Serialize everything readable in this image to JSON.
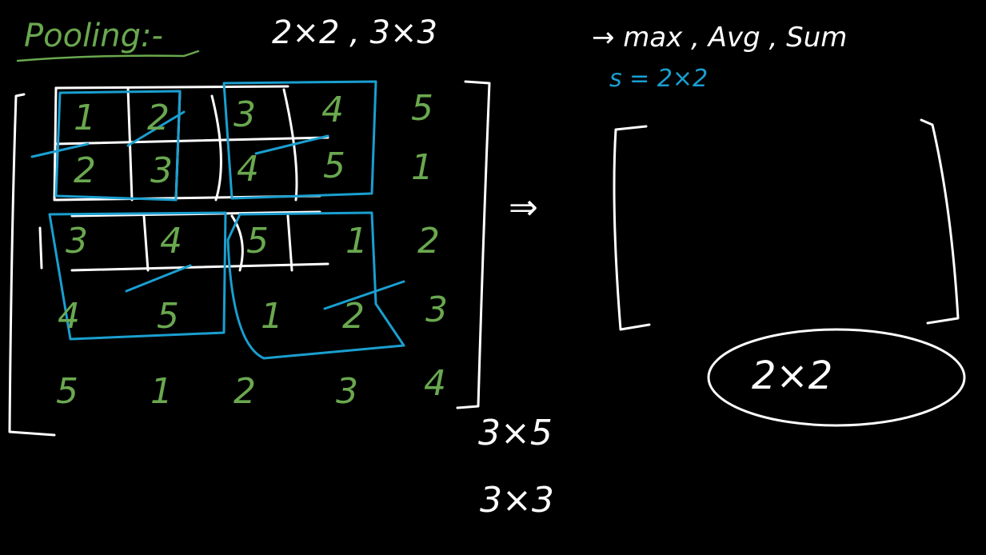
{
  "colors": {
    "background": "#000000",
    "ink_white": "#ffffff",
    "ink_green": "#6aa84f",
    "ink_blue": "#1a9fd0"
  },
  "title": "Pooling:-",
  "kernel_sizes": "2×2 , 3×3",
  "pool_types": "→ max , Avg , Sum",
  "stride_note": "s = 2×2",
  "input_matrix": [
    [
      "1",
      "2",
      "3",
      "4",
      "5"
    ],
    [
      "2",
      "3",
      "4",
      "5",
      "1"
    ],
    [
      "3",
      "4",
      "5",
      "1",
      "2"
    ],
    [
      "4",
      "5",
      "1",
      "2",
      "3"
    ],
    [
      "5",
      "1",
      "2",
      "3",
      "4"
    ]
  ],
  "arrow": "⇒",
  "output_size": "2×2",
  "dims_note_1": "3×5",
  "dims_note_2": "3×3"
}
